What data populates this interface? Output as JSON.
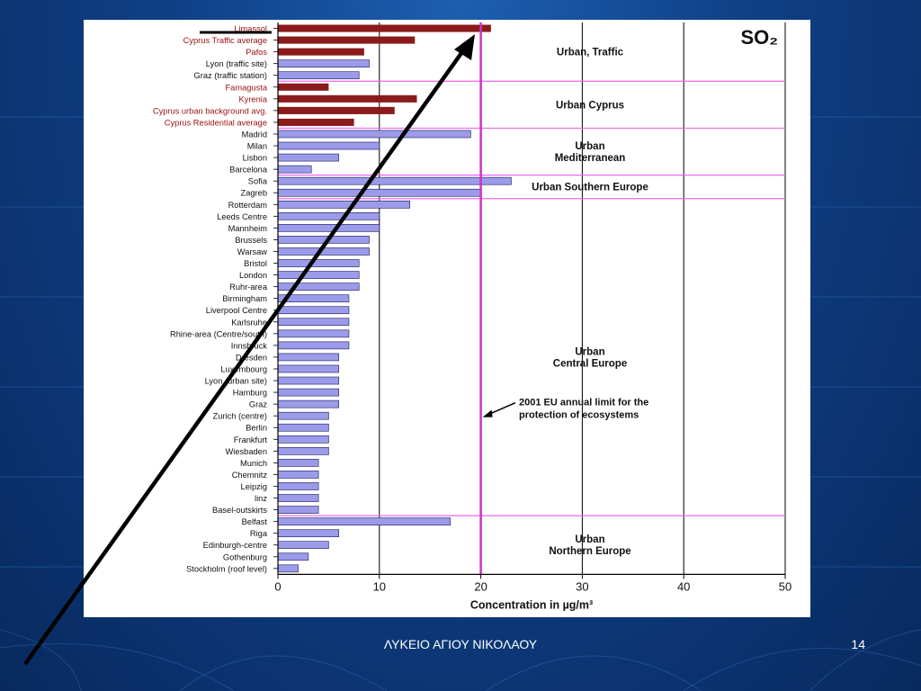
{
  "slide": {
    "footer": "ΛΥΚΕΙΟ ΑΓΙΟΥ ΝΙΚΟΛΑΟΥ",
    "number": "14"
  },
  "colors": {
    "background": "#0f3f86",
    "cyprus_bar": "#8b1a1a",
    "other_bar": "#9b9bea",
    "bar_stroke": "#1a1a5a",
    "limit_line": "#cc33cc",
    "group_line": "#ee66ee",
    "arrow": "#000000"
  },
  "chart_data": {
    "type": "bar",
    "orientation": "horizontal",
    "title": "SO₂",
    "xlabel": "Concentration in µg/m³",
    "xlim": [
      0,
      50
    ],
    "xticks": [
      0,
      10,
      20,
      30,
      40,
      50
    ],
    "limit": {
      "value": 20,
      "label_line1": "2001 EU annual limit for the",
      "label_line2": "protection of ecosystems"
    },
    "categories": [
      "Limassol",
      "Cyprus Traffic average",
      "Pafos",
      "Lyon (traffic site)",
      "Graz (traffic station)",
      "Famagusta",
      "Kyrenia",
      "Cyprus urban background avg.",
      "Cyprus Residential average",
      "Madrid",
      "Milan",
      "Lisbon",
      "Barcelona",
      "Sofia",
      "Zagreb",
      "Rotterdam",
      "Leeds Centre",
      "Mannheim",
      "Brussels",
      "Warsaw",
      "Bristol",
      "London",
      "Ruhr-area",
      "Birmingham",
      "Liverpool Centre",
      "Karlsruhe",
      "Rhine-area (Centre/south)",
      "Innsbruck",
      "Dresden",
      "Luxembourg",
      "Lyon (urban site)",
      "Hamburg",
      "Graz",
      "Zurich (centre)",
      "Berlin",
      "Frankfurt",
      "Wiesbaden",
      "Munich",
      "Chemnitz",
      "Leipzig",
      "linz",
      "Basel-outskirts",
      "Belfast",
      "Riga",
      "Edinburgh-centre",
      "Gothenburg",
      "Stockholm (roof level)"
    ],
    "values": [
      21,
      13.5,
      8.5,
      9,
      8,
      5,
      13.7,
      11.5,
      7.5,
      19,
      10,
      6,
      3.3,
      23,
      20,
      13,
      10,
      10,
      9,
      9,
      8,
      8,
      8,
      7,
      7,
      7,
      7,
      7,
      6,
      6,
      6,
      6,
      6,
      5,
      5,
      5,
      5,
      4,
      4,
      4,
      4,
      4,
      17,
      6,
      5,
      3,
      2
    ],
    "cyprus": [
      true,
      true,
      true,
      false,
      false,
      true,
      true,
      true,
      true,
      false,
      false,
      false,
      false,
      false,
      false,
      false,
      false,
      false,
      false,
      false,
      false,
      false,
      false,
      false,
      false,
      false,
      false,
      false,
      false,
      false,
      false,
      false,
      false,
      false,
      false,
      false,
      false,
      false,
      false,
      false,
      false,
      false,
      false,
      false,
      false,
      false,
      false
    ],
    "groups": [
      {
        "label_lines": [
          "Urban, Traffic"
        ],
        "start": 0,
        "end": 4
      },
      {
        "label_lines": [
          "Urban Cyprus"
        ],
        "start": 5,
        "end": 8
      },
      {
        "label_lines": [
          "Urban",
          "Mediterranean"
        ],
        "start": 9,
        "end": 12
      },
      {
        "label_lines": [
          "Urban Southern Europe"
        ],
        "start": 13,
        "end": 14
      },
      {
        "label_lines": [
          "Urban",
          "Central Europe"
        ],
        "start": 15,
        "end": 41
      },
      {
        "label_lines": [
          "Urban",
          "Northern Europe"
        ],
        "start": 42,
        "end": 46
      }
    ]
  }
}
